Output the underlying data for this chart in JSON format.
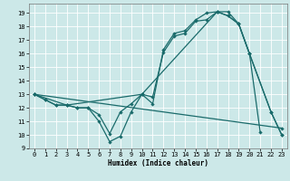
{
  "xlabel": "Humidex (Indice chaleur)",
  "bg_color": "#cce8e8",
  "grid_color": "#b0d0d0",
  "line_color": "#1a6b6b",
  "xlim": [
    -0.5,
    23.5
  ],
  "ylim": [
    9,
    19.7
  ],
  "yticks": [
    9,
    10,
    11,
    12,
    13,
    14,
    15,
    16,
    17,
    18,
    19
  ],
  "xticks": [
    0,
    1,
    2,
    3,
    4,
    5,
    6,
    7,
    8,
    9,
    10,
    11,
    12,
    13,
    14,
    15,
    16,
    17,
    18,
    19,
    20,
    21,
    22,
    23
  ],
  "line1_x": [
    0,
    1,
    2,
    3,
    4,
    5,
    6,
    7,
    8,
    9,
    10,
    11,
    12,
    13,
    14,
    15,
    16,
    17,
    18,
    19,
    20,
    21
  ],
  "line1_y": [
    13,
    12.6,
    12.2,
    12.2,
    12.0,
    12.0,
    11.0,
    9.5,
    9.9,
    11.7,
    13.0,
    12.8,
    16.1,
    17.3,
    17.5,
    18.4,
    18.5,
    19.1,
    19.1,
    18.2,
    16.0,
    10.2
  ],
  "line2_x": [
    0,
    1,
    2,
    3,
    4,
    5,
    6,
    7,
    8,
    9,
    10,
    11,
    12,
    13,
    14,
    15,
    16,
    17,
    18,
    19,
    20,
    22,
    23
  ],
  "line2_y": [
    13,
    12.6,
    12.2,
    12.2,
    12.0,
    12.0,
    11.5,
    10.1,
    11.7,
    12.3,
    13.0,
    12.3,
    16.3,
    17.5,
    17.7,
    18.5,
    19.0,
    19.1,
    18.8,
    18.2,
    16.0,
    11.7,
    10.0
  ],
  "line3_x": [
    0,
    3,
    10,
    17,
    18,
    19,
    20,
    22,
    23
  ],
  "line3_y": [
    13,
    12.2,
    13.0,
    19.1,
    18.8,
    18.2,
    16.0,
    11.7,
    10.0
  ],
  "line4_x": [
    0,
    23
  ],
  "line4_y": [
    13,
    10.5
  ]
}
